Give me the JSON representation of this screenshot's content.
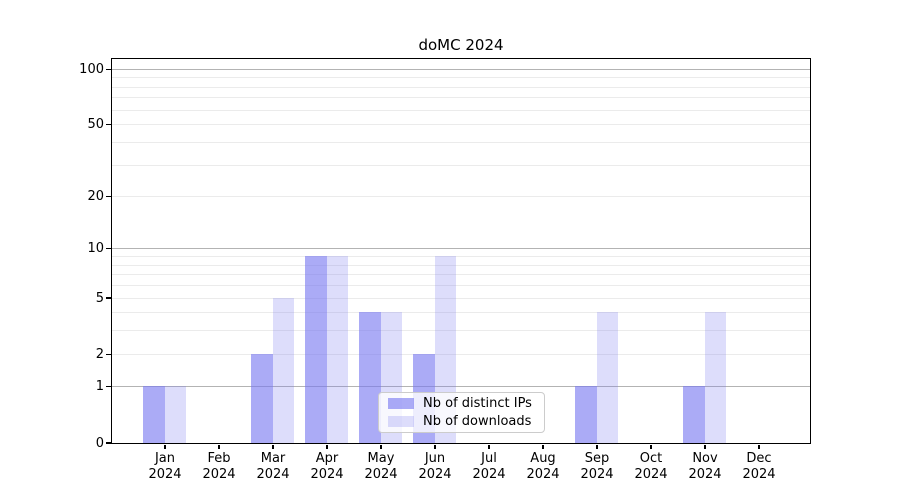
{
  "chart_data": {
    "type": "bar",
    "title": "doMC 2024",
    "categories": [
      "Jan 2024",
      "Feb 2024",
      "Mar 2024",
      "Apr 2024",
      "May 2024",
      "Jun 2024",
      "Jul 2024",
      "Aug 2024",
      "Sep 2024",
      "Oct 2024",
      "Nov 2024",
      "Dec 2024"
    ],
    "month_labels": [
      "Jan",
      "Feb",
      "Mar",
      "Apr",
      "May",
      "Jun",
      "Jul",
      "Aug",
      "Sep",
      "Oct",
      "Nov",
      "Dec"
    ],
    "year": "2024",
    "series": [
      {
        "name": "Nb of distinct IPs",
        "color": "rgba(119,119,240,0.62)",
        "values": [
          1,
          0,
          2,
          9,
          4,
          2,
          0,
          0,
          1,
          0,
          1,
          0
        ]
      },
      {
        "name": "Nb of downloads",
        "color": "rgba(119,119,240,0.25)",
        "values": [
          1,
          0,
          5,
          9,
          4,
          9,
          0,
          0,
          4,
          0,
          4,
          0
        ]
      }
    ],
    "y_axis": {
      "scale": "log10(1+x)",
      "tick_values": [
        0,
        1,
        2,
        5,
        10,
        20,
        50,
        100
      ],
      "tick_labels": [
        "0",
        "1",
        "2",
        "5",
        "10",
        "20",
        "50",
        "100"
      ],
      "major_gridlines": [
        1,
        10,
        100
      ],
      "minor_gridlines": [
        2,
        3,
        4,
        5,
        6,
        7,
        8,
        9,
        20,
        30,
        40,
        50,
        60,
        70,
        80,
        90
      ],
      "range": [
        0,
        115
      ]
    },
    "grid": true,
    "legend_position": "lower center"
  },
  "colors": {
    "background": "#ffffff",
    "axis": "#000000",
    "major_grid": "#b3b3b3",
    "minor_grid": "#ebebeb",
    "legend_border": "#cccccc",
    "legend_background": "rgba(255,255,255,0.8)",
    "bar_dark": "rgba(119,119,240,0.62)",
    "bar_light": "rgba(119,119,240,0.25)"
  }
}
